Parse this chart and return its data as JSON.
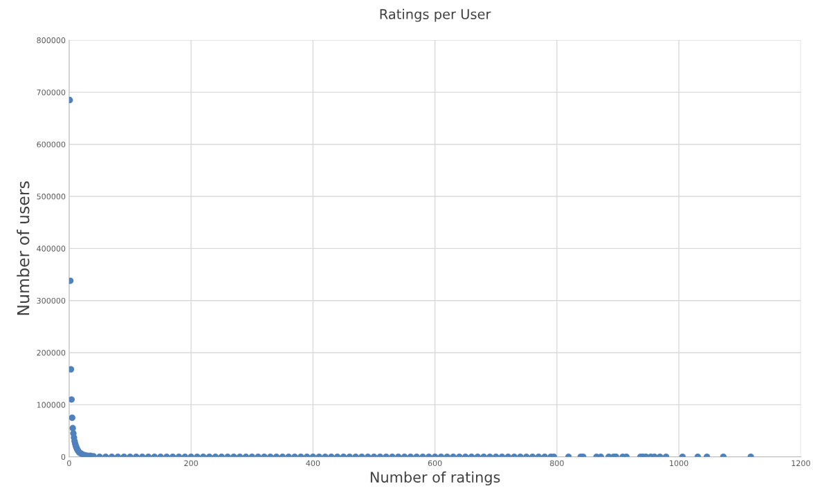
{
  "chart_data": {
    "type": "scatter",
    "title": "Ratings per User",
    "xlabel": "Number of ratings",
    "ylabel": "Number of users",
    "xlim": [
      0,
      1200
    ],
    "ylim": [
      0,
      800000
    ],
    "xticks": [
      0,
      200,
      400,
      600,
      800,
      1000,
      1200
    ],
    "yticks": [
      0,
      100000,
      200000,
      300000,
      400000,
      500000,
      600000,
      700000,
      800000
    ],
    "grid": true,
    "marker": "circle",
    "legend": false,
    "series": [
      {
        "color": "#4f81bd",
        "x": [
          1,
          2,
          3,
          4,
          5,
          6,
          7,
          8,
          9,
          10,
          11,
          12,
          13,
          14,
          15,
          17,
          20,
          23,
          26,
          30,
          35,
          40,
          50,
          60,
          70,
          80,
          90,
          100,
          110,
          120,
          130,
          140,
          150,
          160,
          170,
          180,
          190,
          200,
          210,
          220,
          230,
          240,
          250,
          260,
          270,
          280,
          290,
          300,
          310,
          320,
          330,
          340,
          350,
          360,
          370,
          380,
          390,
          400,
          410,
          420,
          430,
          440,
          450,
          460,
          470,
          480,
          490,
          500,
          510,
          520,
          530,
          540,
          550,
          560,
          570,
          580,
          590,
          600,
          610,
          620,
          630,
          640,
          650,
          660,
          670,
          680,
          690,
          700,
          710,
          720,
          730,
          740,
          750,
          760,
          770,
          780,
          790,
          795,
          819,
          839,
          843,
          865,
          872,
          885,
          893,
          897,
          908,
          914,
          937,
          941,
          946,
          954,
          960,
          969,
          979,
          1006,
          1031,
          1046,
          1073,
          1118
        ],
        "values": [
          685000,
          338000,
          168000,
          110000,
          75000,
          55000,
          45000,
          37000,
          30000,
          25000,
          21000,
          18000,
          15000,
          13000,
          11000,
          8000,
          6000,
          4000,
          3000,
          2000,
          2000,
          1000,
          0,
          0,
          0,
          0,
          0,
          0,
          0,
          0,
          0,
          0,
          0,
          0,
          0,
          0,
          0,
          0,
          0,
          0,
          0,
          0,
          0,
          0,
          0,
          0,
          0,
          0,
          0,
          0,
          0,
          0,
          0,
          0,
          0,
          0,
          0,
          0,
          0,
          0,
          0,
          0,
          0,
          0,
          0,
          0,
          0,
          0,
          0,
          0,
          0,
          0,
          0,
          0,
          0,
          0,
          0,
          0,
          0,
          0,
          0,
          0,
          0,
          0,
          0,
          0,
          0,
          0,
          0,
          0,
          0,
          0,
          0,
          0,
          0,
          0,
          0,
          0,
          0,
          0,
          0,
          0,
          0,
          0,
          0,
          0,
          0,
          0,
          0,
          0,
          0,
          0,
          0,
          0,
          0,
          0,
          0,
          0,
          0,
          0
        ]
      }
    ]
  }
}
